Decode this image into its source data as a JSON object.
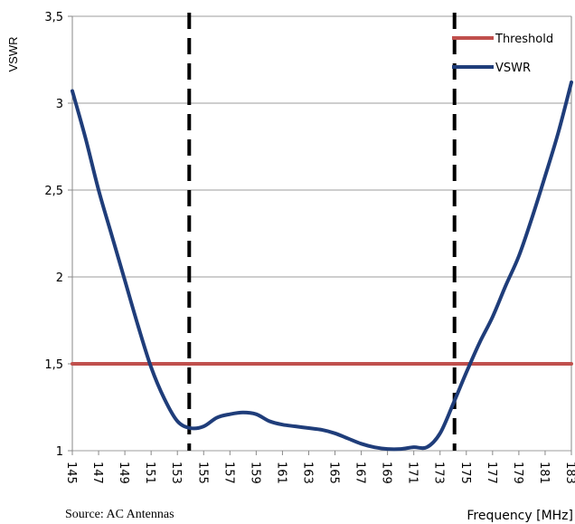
{
  "chart_data": {
    "type": "line",
    "ylabel": "VSWR",
    "xlabel": "Frequency [MHz]",
    "source": "Source: AC Antennas",
    "xlim": [
      145,
      183
    ],
    "ylim": [
      1,
      3.5
    ],
    "yticks": [
      1,
      1.5,
      2,
      2.5,
      3,
      3.5
    ],
    "ytick_labels": [
      "1",
      "1,5",
      "2",
      "2,5",
      "3",
      "3,5"
    ],
    "xticks": [
      145,
      147,
      149,
      151,
      153,
      155,
      157,
      159,
      161,
      163,
      165,
      167,
      169,
      171,
      173,
      175,
      177,
      179,
      181,
      183
    ],
    "grid": true,
    "legend_position": "top-right",
    "series": [
      {
        "name": "Threshold",
        "color": "#c0504d",
        "x": [
          145,
          183
        ],
        "y": [
          1.5,
          1.5
        ]
      },
      {
        "name": "VSWR",
        "color": "#1f3d7a",
        "x": [
          145,
          146,
          147,
          148,
          149,
          150,
          151,
          152,
          153,
          154,
          155,
          156,
          157,
          158,
          159,
          160,
          161,
          162,
          163,
          164,
          165,
          166,
          167,
          168,
          169,
          170,
          171,
          172,
          173,
          174,
          175,
          176,
          177,
          178,
          179,
          180,
          181,
          182,
          183
        ],
        "y": [
          3.07,
          2.8,
          2.5,
          2.24,
          1.98,
          1.72,
          1.48,
          1.3,
          1.17,
          1.13,
          1.14,
          1.19,
          1.21,
          1.22,
          1.21,
          1.17,
          1.15,
          1.14,
          1.13,
          1.12,
          1.1,
          1.07,
          1.04,
          1.02,
          1.01,
          1.01,
          1.02,
          1.02,
          1.1,
          1.27,
          1.45,
          1.62,
          1.77,
          1.95,
          2.12,
          2.34,
          2.58,
          2.83,
          3.12
        ]
      }
    ],
    "vertical_markers": [
      {
        "x": 153.9,
        "style": "dashed",
        "color": "#000000"
      },
      {
        "x": 174.1,
        "style": "dashed",
        "color": "#000000"
      }
    ]
  }
}
